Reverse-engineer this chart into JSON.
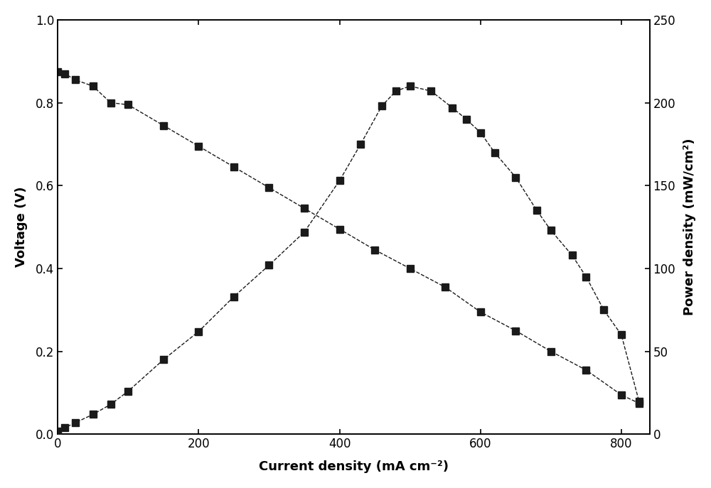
{
  "voltage_x": [
    0,
    10,
    25,
    50,
    75,
    100,
    150,
    200,
    250,
    300,
    350,
    400,
    450,
    500,
    550,
    600,
    650,
    700,
    750,
    800,
    825
  ],
  "voltage_y": [
    0.875,
    0.87,
    0.855,
    0.84,
    0.8,
    0.795,
    0.745,
    0.695,
    0.645,
    0.595,
    0.545,
    0.495,
    0.445,
    0.4,
    0.355,
    0.295,
    0.25,
    0.2,
    0.155,
    0.095,
    0.075
  ],
  "power_x": [
    0,
    10,
    25,
    50,
    75,
    100,
    150,
    200,
    250,
    300,
    350,
    400,
    430,
    460,
    480,
    500,
    530,
    560,
    580,
    600,
    620,
    650,
    680,
    700,
    730,
    750,
    775,
    800,
    825
  ],
  "power_y": [
    2,
    4,
    7,
    12,
    18,
    26,
    45,
    62,
    83,
    102,
    122,
    153,
    175,
    198,
    207,
    210,
    207,
    197,
    190,
    182,
    170,
    155,
    135,
    123,
    108,
    95,
    75,
    60,
    20
  ],
  "xlabel": "Current density (mA cm⁻²)",
  "ylabel_left": "Voltage (V)",
  "ylabel_right": "Power density (mW/cm²)",
  "xlim": [
    0,
    840
  ],
  "ylim_left": [
    0.0,
    1.0
  ],
  "ylim_right": [
    0,
    250
  ],
  "xticks": [
    0,
    200,
    400,
    600,
    800
  ],
  "yticks_left": [
    0.0,
    0.2,
    0.4,
    0.6,
    0.8,
    1.0
  ],
  "yticks_right": [
    0,
    50,
    100,
    150,
    200,
    250
  ],
  "line_color": "#1a1a1a",
  "marker": "s",
  "markersize": 7,
  "linewidth": 1.0,
  "linestyle": "--"
}
